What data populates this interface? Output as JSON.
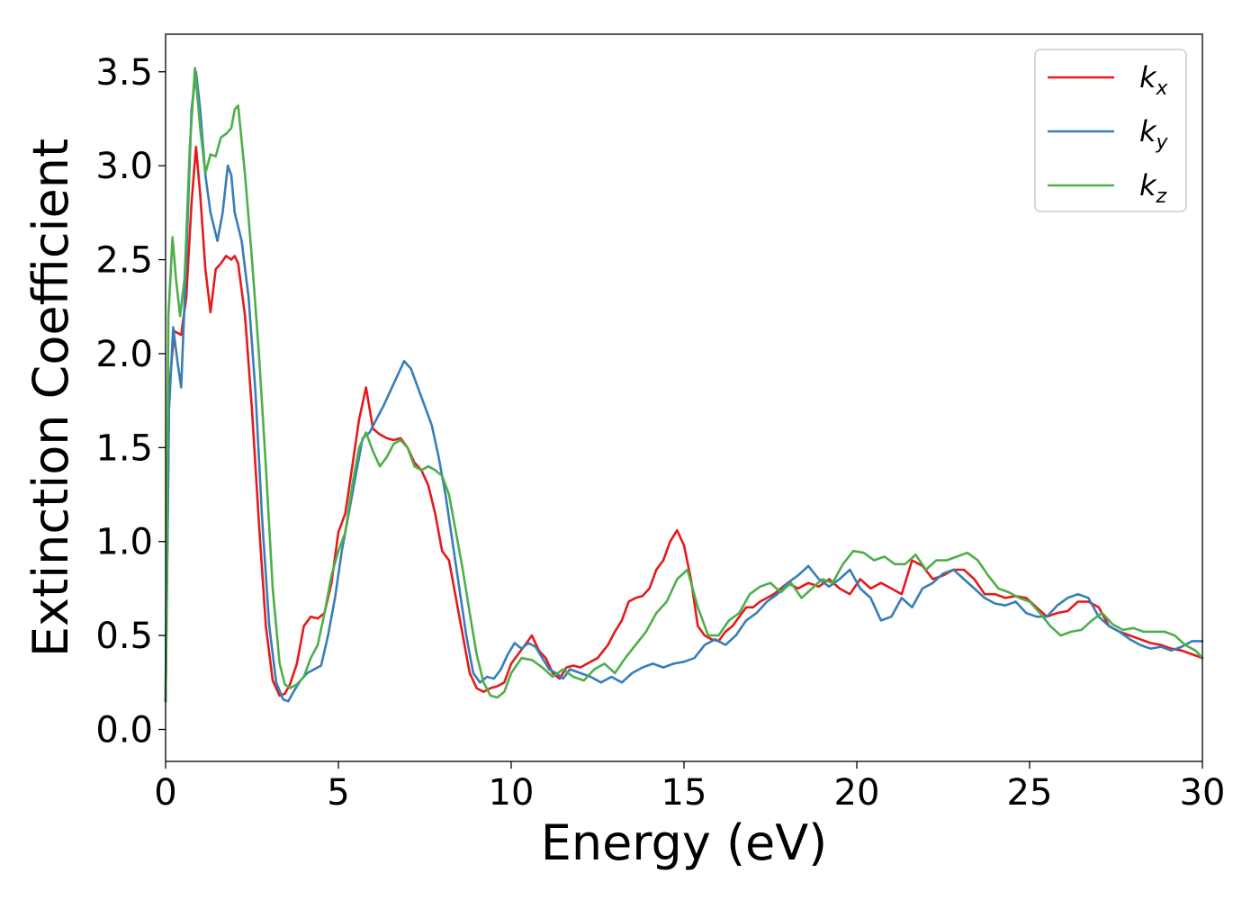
{
  "chart_data": {
    "type": "line",
    "title": "",
    "xlabel": "Energy (eV)",
    "ylabel": "Extinction Coefficient",
    "xlim": [
      0,
      30
    ],
    "ylim": [
      -0.17,
      3.7
    ],
    "xticks": [
      0,
      5,
      10,
      15,
      20,
      25,
      30
    ],
    "xtick_labels": [
      "0",
      "5",
      "10",
      "15",
      "20",
      "25",
      "30"
    ],
    "yticks": [
      0.0,
      0.5,
      1.0,
      1.5,
      2.0,
      2.5,
      3.0,
      3.5
    ],
    "ytick_labels": [
      "0.0",
      "0.5",
      "1.0",
      "1.5",
      "2.0",
      "2.5",
      "3.0",
      "3.5"
    ],
    "grid": false,
    "legend_position": "top-right",
    "series": [
      {
        "name": "k_x",
        "legend_base": "k",
        "legend_sub": "x",
        "color": "#e41a1c",
        "x": [
          0,
          0.1,
          0.25,
          0.45,
          0.6,
          0.75,
          0.88,
          1.0,
          1.15,
          1.3,
          1.45,
          1.6,
          1.75,
          1.9,
          2.0,
          2.1,
          2.3,
          2.5,
          2.7,
          2.9,
          3.1,
          3.3,
          3.45,
          3.6,
          3.8,
          4.0,
          4.2,
          4.4,
          4.6,
          4.8,
          5.0,
          5.2,
          5.4,
          5.6,
          5.8,
          6.0,
          6.2,
          6.4,
          6.6,
          6.8,
          7.0,
          7.2,
          7.4,
          7.6,
          7.8,
          8.0,
          8.2,
          8.4,
          8.6,
          8.8,
          9.0,
          9.2,
          9.4,
          9.6,
          9.8,
          10.0,
          10.2,
          10.4,
          10.6,
          10.8,
          11.0,
          11.2,
          11.4,
          11.6,
          11.8,
          12.0,
          12.2,
          12.5,
          12.8,
          13.0,
          13.2,
          13.4,
          13.6,
          13.8,
          14.0,
          14.2,
          14.4,
          14.6,
          14.8,
          15.0,
          15.2,
          15.4,
          15.6,
          15.8,
          16.0,
          16.2,
          16.4,
          16.6,
          16.8,
          17.0,
          17.2,
          17.4,
          17.6,
          17.8,
          18.0,
          18.3,
          18.6,
          18.9,
          19.2,
          19.5,
          19.8,
          20.1,
          20.4,
          20.7,
          21.0,
          21.3,
          21.6,
          21.9,
          22.2,
          22.5,
          22.8,
          23.1,
          23.4,
          23.7,
          24.0,
          24.3,
          24.6,
          24.9,
          25.2,
          25.5,
          25.8,
          26.1,
          26.4,
          26.7,
          27.0,
          27.3,
          27.6,
          27.9,
          28.2,
          28.5,
          28.8,
          29.1,
          29.4,
          29.7,
          30.0
        ],
        "y": [
          0.15,
          1.8,
          2.12,
          2.1,
          2.3,
          2.8,
          3.1,
          2.85,
          2.45,
          2.22,
          2.45,
          2.48,
          2.52,
          2.5,
          2.52,
          2.48,
          2.2,
          1.7,
          1.1,
          0.55,
          0.26,
          0.18,
          0.19,
          0.24,
          0.35,
          0.55,
          0.6,
          0.59,
          0.62,
          0.78,
          1.05,
          1.15,
          1.4,
          1.65,
          1.82,
          1.6,
          1.57,
          1.55,
          1.54,
          1.55,
          1.5,
          1.42,
          1.38,
          1.3,
          1.15,
          0.95,
          0.9,
          0.7,
          0.5,
          0.3,
          0.22,
          0.2,
          0.22,
          0.23,
          0.25,
          0.35,
          0.4,
          0.45,
          0.5,
          0.42,
          0.38,
          0.3,
          0.27,
          0.33,
          0.34,
          0.33,
          0.35,
          0.38,
          0.45,
          0.52,
          0.58,
          0.68,
          0.7,
          0.71,
          0.75,
          0.85,
          0.9,
          1.0,
          1.06,
          0.98,
          0.8,
          0.55,
          0.5,
          0.48,
          0.47,
          0.52,
          0.55,
          0.6,
          0.65,
          0.65,
          0.68,
          0.7,
          0.72,
          0.75,
          0.78,
          0.75,
          0.78,
          0.76,
          0.8,
          0.75,
          0.72,
          0.8,
          0.75,
          0.78,
          0.75,
          0.72,
          0.9,
          0.87,
          0.8,
          0.82,
          0.85,
          0.85,
          0.8,
          0.72,
          0.72,
          0.7,
          0.71,
          0.7,
          0.65,
          0.6,
          0.62,
          0.63,
          0.68,
          0.68,
          0.65,
          0.55,
          0.52,
          0.5,
          0.48,
          0.46,
          0.45,
          0.43,
          0.42,
          0.4,
          0.38
        ]
      },
      {
        "name": "k_y",
        "legend_base": "k",
        "legend_sub": "y",
        "color": "#377eb8",
        "x": [
          0,
          0.1,
          0.22,
          0.35,
          0.45,
          0.6,
          0.75,
          0.88,
          1.0,
          1.15,
          1.3,
          1.5,
          1.65,
          1.8,
          1.9,
          2.0,
          2.2,
          2.4,
          2.6,
          2.8,
          3.0,
          3.2,
          3.4,
          3.55,
          3.7,
          3.9,
          4.1,
          4.3,
          4.5,
          4.7,
          4.9,
          5.1,
          5.3,
          5.5,
          5.7,
          5.9,
          6.1,
          6.3,
          6.5,
          6.7,
          6.9,
          7.1,
          7.3,
          7.5,
          7.7,
          7.9,
          8.1,
          8.3,
          8.5,
          8.7,
          8.9,
          9.1,
          9.3,
          9.5,
          9.7,
          9.9,
          10.1,
          10.3,
          10.5,
          10.7,
          10.9,
          11.1,
          11.3,
          11.5,
          11.7,
          12.0,
          12.3,
          12.6,
          12.9,
          13.2,
          13.5,
          13.8,
          14.1,
          14.4,
          14.7,
          15.0,
          15.3,
          15.6,
          15.9,
          16.2,
          16.5,
          16.8,
          17.1,
          17.4,
          17.7,
          18.0,
          18.3,
          18.6,
          18.9,
          19.2,
          19.5,
          19.8,
          20.1,
          20.4,
          20.7,
          21.0,
          21.3,
          21.6,
          21.9,
          22.2,
          22.5,
          22.8,
          23.1,
          23.4,
          23.7,
          24.0,
          24.3,
          24.6,
          24.9,
          25.2,
          25.5,
          25.8,
          26.1,
          26.4,
          26.7,
          27.0,
          27.3,
          27.6,
          27.9,
          28.2,
          28.5,
          28.8,
          29.1,
          29.4,
          29.7,
          30.0
        ],
        "y": [
          0.15,
          1.7,
          2.14,
          1.95,
          1.82,
          2.5,
          3.3,
          3.5,
          3.3,
          2.95,
          2.75,
          2.6,
          2.75,
          3.0,
          2.95,
          2.75,
          2.6,
          2.3,
          1.8,
          1.1,
          0.55,
          0.25,
          0.16,
          0.15,
          0.2,
          0.26,
          0.3,
          0.32,
          0.34,
          0.5,
          0.7,
          0.95,
          1.15,
          1.35,
          1.55,
          1.58,
          1.65,
          1.72,
          1.8,
          1.88,
          1.96,
          1.92,
          1.82,
          1.72,
          1.62,
          1.45,
          1.25,
          1.0,
          0.75,
          0.5,
          0.3,
          0.25,
          0.28,
          0.27,
          0.32,
          0.4,
          0.46,
          0.43,
          0.46,
          0.44,
          0.38,
          0.32,
          0.3,
          0.27,
          0.32,
          0.3,
          0.28,
          0.25,
          0.28,
          0.25,
          0.3,
          0.33,
          0.35,
          0.33,
          0.35,
          0.36,
          0.38,
          0.45,
          0.48,
          0.45,
          0.5,
          0.58,
          0.62,
          0.68,
          0.72,
          0.78,
          0.82,
          0.87,
          0.8,
          0.76,
          0.8,
          0.85,
          0.75,
          0.7,
          0.58,
          0.6,
          0.7,
          0.65,
          0.75,
          0.78,
          0.83,
          0.85,
          0.8,
          0.75,
          0.7,
          0.67,
          0.66,
          0.68,
          0.62,
          0.6,
          0.6,
          0.66,
          0.7,
          0.72,
          0.7,
          0.6,
          0.55,
          0.52,
          0.48,
          0.45,
          0.43,
          0.44,
          0.42,
          0.44,
          0.47,
          0.47
        ]
      },
      {
        "name": "k_z",
        "legend_base": "k",
        "legend_sub": "z",
        "color": "#4daf4a",
        "x": [
          0,
          0.08,
          0.2,
          0.3,
          0.42,
          0.55,
          0.7,
          0.85,
          1.0,
          1.15,
          1.3,
          1.45,
          1.6,
          1.75,
          1.9,
          2.0,
          2.1,
          2.3,
          2.5,
          2.7,
          2.9,
          3.1,
          3.3,
          3.45,
          3.6,
          3.8,
          4.0,
          4.2,
          4.4,
          4.6,
          4.8,
          5.0,
          5.2,
          5.4,
          5.6,
          5.8,
          6.0,
          6.2,
          6.4,
          6.6,
          6.8,
          7.0,
          7.2,
          7.4,
          7.6,
          7.8,
          8.0,
          8.2,
          8.4,
          8.6,
          8.8,
          9.0,
          9.2,
          9.4,
          9.6,
          9.8,
          10.0,
          10.3,
          10.6,
          10.9,
          11.2,
          11.5,
          11.8,
          12.1,
          12.4,
          12.7,
          13.0,
          13.3,
          13.6,
          13.9,
          14.2,
          14.5,
          14.8,
          15.1,
          15.4,
          15.7,
          16.0,
          16.3,
          16.6,
          16.9,
          17.2,
          17.5,
          17.8,
          18.1,
          18.4,
          18.7,
          19.0,
          19.3,
          19.6,
          19.9,
          20.2,
          20.5,
          20.8,
          21.1,
          21.4,
          21.7,
          22.0,
          22.3,
          22.6,
          22.9,
          23.2,
          23.5,
          23.8,
          24.1,
          24.4,
          24.7,
          25.0,
          25.3,
          25.6,
          25.9,
          26.2,
          26.5,
          26.8,
          27.1,
          27.4,
          27.7,
          28.0,
          28.3,
          28.6,
          28.9,
          29.2,
          29.5,
          29.8,
          30.0
        ],
        "y": [
          0.15,
          2.2,
          2.62,
          2.4,
          2.2,
          2.4,
          3.1,
          3.52,
          3.2,
          2.96,
          3.06,
          3.05,
          3.15,
          3.17,
          3.2,
          3.3,
          3.32,
          2.95,
          2.5,
          2.0,
          1.4,
          0.75,
          0.35,
          0.24,
          0.22,
          0.24,
          0.28,
          0.38,
          0.45,
          0.62,
          0.82,
          0.95,
          1.05,
          1.3,
          1.5,
          1.58,
          1.48,
          1.4,
          1.45,
          1.52,
          1.54,
          1.5,
          1.4,
          1.38,
          1.4,
          1.38,
          1.35,
          1.25,
          1.05,
          0.85,
          0.62,
          0.4,
          0.25,
          0.18,
          0.17,
          0.2,
          0.3,
          0.38,
          0.37,
          0.33,
          0.28,
          0.32,
          0.28,
          0.26,
          0.32,
          0.35,
          0.3,
          0.38,
          0.45,
          0.52,
          0.62,
          0.68,
          0.8,
          0.85,
          0.65,
          0.5,
          0.5,
          0.58,
          0.62,
          0.72,
          0.76,
          0.78,
          0.73,
          0.78,
          0.7,
          0.75,
          0.8,
          0.78,
          0.88,
          0.95,
          0.94,
          0.9,
          0.92,
          0.88,
          0.88,
          0.93,
          0.85,
          0.9,
          0.9,
          0.92,
          0.94,
          0.9,
          0.82,
          0.75,
          0.73,
          0.7,
          0.68,
          0.62,
          0.55,
          0.5,
          0.52,
          0.53,
          0.58,
          0.62,
          0.56,
          0.53,
          0.54,
          0.52,
          0.52,
          0.52,
          0.5,
          0.45,
          0.42,
          0.38
        ]
      }
    ]
  }
}
